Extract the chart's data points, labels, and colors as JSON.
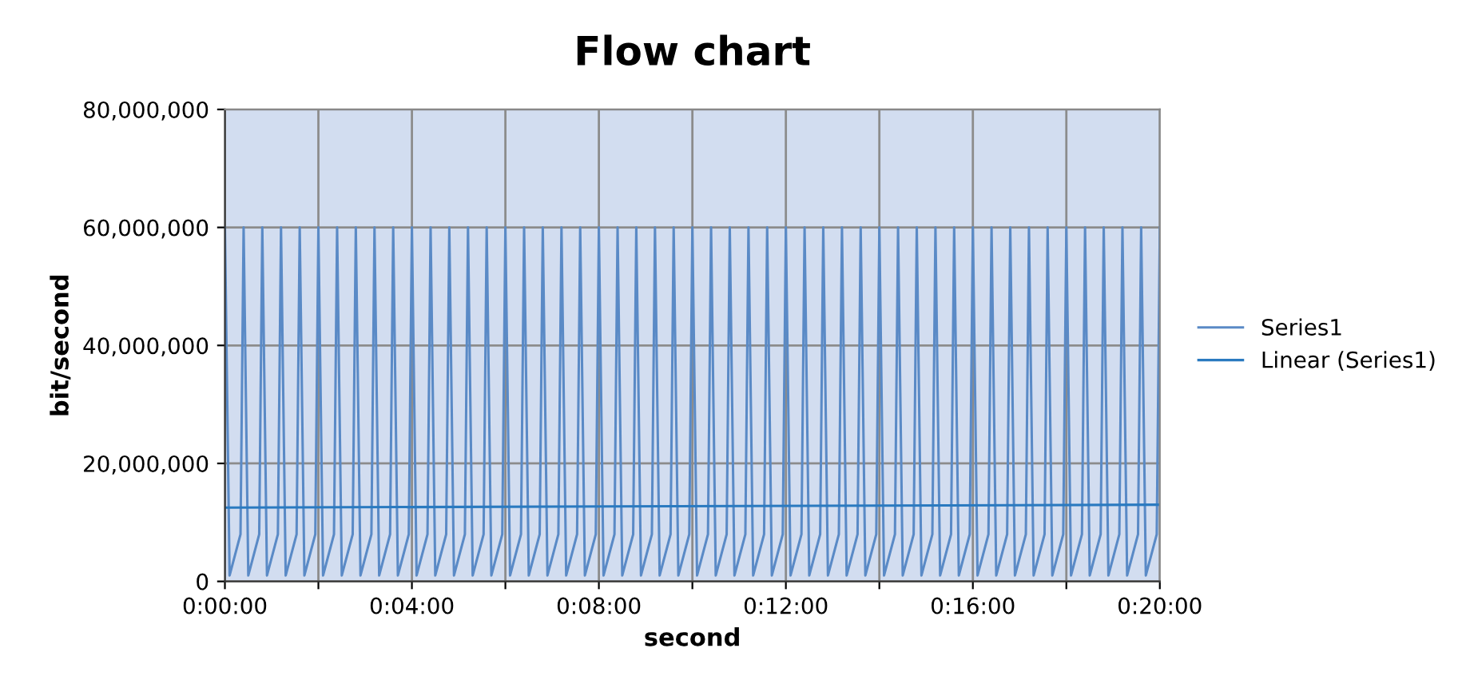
{
  "chart_data": {
    "type": "line",
    "title": "Flow chart",
    "xlabel": "second",
    "ylabel": "bit/second",
    "series": [
      {
        "name": "Series1",
        "color": "#5a8ac6",
        "x": [
          0,
          0.00167,
          0.00556,
          0.00667,
          0.00834,
          0.01223,
          0.01333,
          0.015,
          0.01889,
          0.02,
          0.02167,
          0.02556,
          0.02667,
          0.02834,
          0.03223,
          0.03333,
          0.035,
          0.03889,
          0.04,
          0.04167,
          0.04556,
          0.04667,
          0.04834,
          0.05223,
          0.05333,
          0.055,
          0.05889,
          0.06,
          0.06167,
          0.06556,
          0.06667,
          0.06834,
          0.07223,
          0.07333,
          0.075,
          0.07889,
          0.08,
          0.08167,
          0.08556,
          0.08667,
          0.08834,
          0.09223,
          0.09333,
          0.095,
          0.09889,
          0.1,
          0.10167,
          0.10556,
          0.10667,
          0.10834,
          0.11223,
          0.11333,
          0.115,
          0.11889,
          0.12,
          0.12167,
          0.12556,
          0.12667,
          0.12834,
          0.13223,
          0.13333,
          0.135,
          0.13889,
          0.14,
          0.14167,
          0.14556,
          0.14667,
          0.14834,
          0.15223,
          0.15333,
          0.155,
          0.15889,
          0.16,
          0.16167,
          0.16556,
          0.16667,
          0.16834,
          0.17223,
          0.17333,
          0.175,
          0.17889,
          0.18,
          0.18167,
          0.18556,
          0.18667,
          0.18834,
          0.19223,
          0.19333,
          0.195,
          0.19889,
          0.2,
          0.20167,
          0.20556,
          0.20667,
          0.20834,
          0.21223,
          0.21333,
          0.215,
          0.21889,
          0.22,
          0.22167,
          0.22556,
          0.22667,
          0.22834,
          0.23223,
          0.23333,
          0.235,
          0.23889,
          0.24,
          0.24167,
          0.24556,
          0.24667,
          0.24834,
          0.25223,
          0.25333,
          0.255,
          0.25889,
          0.26,
          0.26167,
          0.26556,
          0.26667,
          0.26834,
          0.27223,
          0.27333,
          0.275,
          0.27889,
          0.28,
          0.28167,
          0.28556,
          0.28667,
          0.28834,
          0.29223,
          0.29333,
          0.295,
          0.29889,
          0.3,
          0.30167,
          0.30556,
          0.30667,
          0.30834,
          0.31223,
          0.31333,
          0.315,
          0.31889,
          0.32,
          0.32167,
          0.32556,
          0.32667,
          0.32834,
          0.33223,
          0.33333
        ],
        "values": [
          60000000,
          1000000,
          8000000,
          60000000,
          1000000,
          8000000,
          60000000,
          1000000,
          8000000,
          60000000,
          1000000,
          8000000,
          60000000,
          1000000,
          8000000,
          60000000,
          1000000,
          8000000,
          60000000,
          1000000,
          8000000,
          60000000,
          1000000,
          8000000,
          60000000,
          1000000,
          8000000,
          60000000,
          1000000,
          8000000,
          60000000,
          1000000,
          8000000,
          60000000,
          1000000,
          8000000,
          60000000,
          1000000,
          8000000,
          60000000,
          1000000,
          8000000,
          60000000,
          1000000,
          8000000,
          60000000,
          1000000,
          8000000,
          60000000,
          1000000,
          8000000,
          60000000,
          1000000,
          8000000,
          60000000,
          1000000,
          8000000,
          60000000,
          1000000,
          8000000,
          60000000,
          1000000,
          8000000,
          60000000,
          1000000,
          8000000,
          60000000,
          1000000,
          8000000,
          60000000,
          1000000,
          8000000,
          60000000,
          1000000,
          8000000,
          60000000,
          1000000,
          8000000,
          60000000,
          1000000,
          8000000,
          60000000,
          1000000,
          8000000,
          60000000,
          1000000,
          8000000,
          60000000,
          1000000,
          8000000,
          60000000,
          1000000,
          8000000,
          60000000,
          1000000,
          8000000,
          60000000,
          1000000,
          8000000,
          60000000,
          1000000,
          8000000,
          60000000,
          1000000,
          8000000,
          60000000,
          1000000,
          8000000,
          60000000,
          1000000,
          8000000,
          60000000,
          1000000,
          8000000,
          60000000,
          1000000,
          8000000,
          60000000,
          1000000,
          8000000,
          60000000,
          1000000,
          8000000,
          60000000,
          1000000,
          8000000,
          60000000,
          1000000,
          8000000,
          60000000,
          1000000,
          8000000,
          60000000,
          1000000,
          8000000,
          60000000,
          1000000,
          8000000,
          60000000,
          1000000,
          8000000,
          60000000,
          1000000,
          8000000,
          60000000,
          1000000,
          8000000,
          60000000,
          1000000,
          8000000,
          60000000
        ]
      },
      {
        "name": "Linear (Series1)",
        "color": "#2a7ac0",
        "x": [
          0,
          0.33333
        ],
        "values": [
          12500000,
          13000000
        ]
      }
    ],
    "xlim": [
      0,
      0.33333
    ],
    "xticks": [
      {
        "value": 0,
        "label": "0:00:00"
      },
      {
        "value": 0.03333,
        "label": null
      },
      {
        "value": 0.06667,
        "label": "0:04:00"
      },
      {
        "value": 0.1,
        "label": null
      },
      {
        "value": 0.13333,
        "label": "0:08:00"
      },
      {
        "value": 0.16667,
        "label": null
      },
      {
        "value": 0.2,
        "label": "0:12:00"
      },
      {
        "value": 0.23333,
        "label": null
      },
      {
        "value": 0.26667,
        "label": "0:16:00"
      },
      {
        "value": 0.3,
        "label": null
      },
      {
        "value": 0.33333,
        "label": "0:20:00"
      }
    ],
    "ylim": [
      0,
      80000000
    ],
    "yticks": [
      0,
      {
        "value": 20000000,
        "label": "20,000,000"
      },
      {
        "value": 40000000,
        "label": "40,000,000"
      },
      {
        "value": 60000000,
        "label": "60,000,000"
      },
      {
        "value": 80000000,
        "label": "80,000,000"
      }
    ],
    "grid": true,
    "legend": "right",
    "marker": "none",
    "line_style": "solid"
  }
}
